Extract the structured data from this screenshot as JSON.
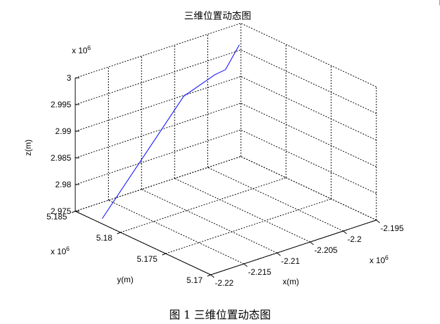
{
  "figure": {
    "caption": "图 1  三维位置动态图"
  },
  "chart_data": {
    "type": "line3d",
    "title": "三维位置动态图",
    "xlabel": "x(m)",
    "ylabel": "y(m)",
    "zlabel": "z(m)",
    "x_multiplier": "x 10",
    "x_exponent": "6",
    "y_multiplier": "x 10",
    "y_exponent": "6",
    "z_multiplier": "x 10",
    "z_exponent": "6",
    "xlim": [
      -2.22,
      -2.195
    ],
    "ylim": [
      5.17,
      5.185
    ],
    "zlim": [
      2.975,
      3.0
    ],
    "x_ticks": [
      -2.22,
      -2.215,
      -2.21,
      -2.205,
      -2.2,
      -2.195
    ],
    "x_tick_labels": [
      "-2.22",
      "-2.215",
      "-2.21",
      "-2.205",
      "-2.2",
      "-2.195"
    ],
    "y_ticks": [
      5.17,
      5.175,
      5.18,
      5.185
    ],
    "y_tick_labels": [
      "5.17",
      "5.175",
      "5.18",
      "5.185"
    ],
    "z_ticks": [
      2.975,
      2.98,
      2.985,
      2.99,
      2.995,
      3.0
    ],
    "z_tick_labels": [
      "2.975",
      "2.98",
      "2.985",
      "2.99",
      "2.995",
      "3"
    ],
    "grid": true,
    "line_color": "#0000ff",
    "series": [
      {
        "x": [
          -2.2192,
          -2.2069,
          -2.2022,
          -2.2006,
          -2.1985
        ],
        "y": [
          5.1826,
          5.1826,
          5.1826,
          5.1826,
          5.1826
        ],
        "z": [
          2.9752,
          2.9931,
          2.9952,
          2.9955,
          2.9993
        ]
      }
    ]
  }
}
